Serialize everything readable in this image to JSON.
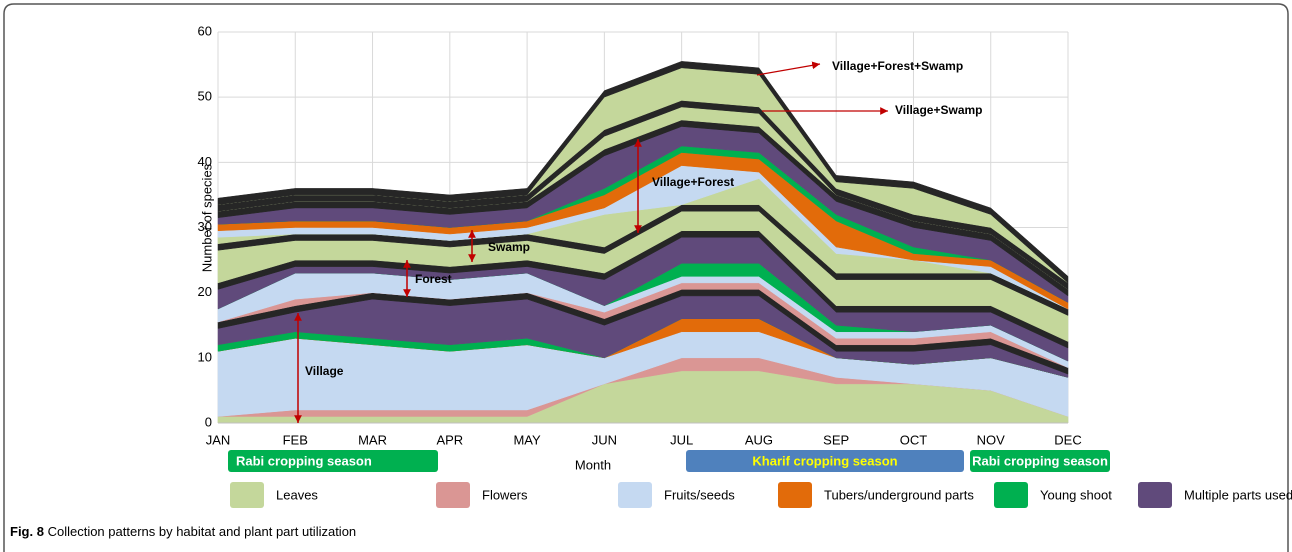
{
  "chart_data": {
    "type": "stacked-area",
    "x_label": "Month",
    "y_label": "Number of species",
    "categories": [
      "JAN",
      "FEB",
      "MAR",
      "APR",
      "MAY",
      "JUN",
      "JUL",
      "AUG",
      "SEP",
      "OCT",
      "NOV",
      "DEC"
    ],
    "ylim": [
      0,
      60
    ],
    "yticks": [
      0,
      10,
      20,
      30,
      40,
      50,
      60
    ],
    "grid": true,
    "series": [
      {
        "name": "Leaves",
        "color": "#c4d79b",
        "values": [
          1,
          1,
          1,
          1,
          1,
          6,
          8,
          8,
          6,
          6,
          5,
          1
        ]
      },
      {
        "name": "Flowers",
        "color": "#da9694",
        "values": [
          0,
          1,
          1,
          1,
          1,
          0,
          2,
          2,
          1,
          0,
          0,
          0
        ]
      },
      {
        "name": "Fruits/seeds",
        "color": "#c5d9f1",
        "values": [
          10,
          11,
          10,
          9,
          10,
          4,
          4,
          4,
          3,
          3,
          5,
          6
        ]
      },
      {
        "name": "Tubers/underground parts",
        "color": "#e26b0a",
        "values": [
          0,
          0,
          0,
          0,
          0,
          0,
          2,
          2,
          0,
          0,
          0,
          0
        ]
      },
      {
        "name": "Young shoot",
        "color": "#00b050",
        "values": [
          1,
          1,
          1,
          1,
          1,
          0,
          0,
          0,
          0,
          0,
          0,
          0
        ]
      },
      {
        "name": "Multiple parts used",
        "color": "#604a7b",
        "values": [
          2.5,
          3,
          6,
          6,
          6,
          5,
          3.5,
          3.5,
          1,
          2,
          2,
          0.5
        ]
      },
      {
        "color": "#262626",
        "values": [
          1,
          1,
          1,
          1,
          1,
          1,
          1,
          1,
          1,
          1,
          1,
          1
        ]
      },
      {
        "name": "Flowers",
        "color": "#da9694",
        "values": [
          0,
          1,
          0,
          0,
          0,
          1,
          1,
          1,
          1,
          1,
          1,
          0
        ]
      },
      {
        "name": "Fruits/seeds",
        "color": "#c5d9f1",
        "values": [
          2,
          4,
          3,
          3,
          3,
          1,
          1,
          1,
          1,
          1,
          1,
          1
        ]
      },
      {
        "name": "Young shoot",
        "color": "#00b050",
        "values": [
          0,
          0,
          0,
          0,
          0,
          0,
          2,
          2,
          1,
          0,
          0,
          0
        ]
      },
      {
        "name": "Multiple parts used",
        "color": "#604a7b",
        "values": [
          3,
          1,
          1,
          1,
          1,
          4,
          4,
          4,
          2,
          3,
          2,
          2
        ]
      },
      {
        "color": "#262626",
        "values": [
          1,
          1,
          1,
          1,
          1,
          1,
          1,
          1,
          1,
          1,
          1,
          1
        ]
      },
      {
        "name": "Leaves",
        "color": "#c4d79b",
        "values": [
          5,
          3,
          3,
          3,
          3,
          3,
          3,
          3,
          4,
          4,
          4,
          4
        ]
      },
      {
        "color": "#262626",
        "values": [
          1,
          1,
          1,
          1,
          1,
          1,
          1,
          1,
          1,
          1,
          1,
          1
        ]
      },
      {
        "name": "Leaves",
        "color": "#c4d79b",
        "values": [
          1,
          0,
          0,
          0,
          0,
          5,
          0,
          4,
          3,
          2,
          0,
          0
        ]
      },
      {
        "name": "Fruits/seeds",
        "color": "#c5d9f1",
        "values": [
          1,
          1,
          1,
          1,
          1,
          1,
          6,
          1,
          1,
          0,
          1,
          0
        ]
      },
      {
        "name": "Tubers/underground parts",
        "color": "#e26b0a",
        "values": [
          1,
          1,
          1,
          1,
          1,
          2,
          2,
          2,
          4,
          1,
          1,
          1
        ]
      },
      {
        "name": "Young shoot",
        "color": "#00b050",
        "values": [
          0,
          0,
          0,
          0,
          0,
          1,
          1,
          1,
          1,
          1,
          0,
          0
        ]
      },
      {
        "name": "Multiple parts used",
        "color": "#604a7b",
        "values": [
          1,
          2,
          2,
          2,
          2,
          5,
          3,
          3,
          2,
          3,
          3,
          1
        ]
      },
      {
        "color": "#262626",
        "values": [
          1,
          1,
          1,
          1,
          1,
          1,
          1,
          1,
          1,
          1,
          1,
          1
        ]
      },
      {
        "name": "Leaves",
        "color": "#c4d79b",
        "values": [
          0,
          0,
          0,
          0,
          0,
          2,
          2,
          2,
          0,
          0,
          0,
          0
        ]
      },
      {
        "color": "#262626",
        "values": [
          1,
          1,
          1,
          1,
          1,
          1,
          1,
          1,
          1,
          1,
          1,
          1
        ]
      },
      {
        "name": "Leaves",
        "color": "#c4d79b",
        "values": [
          0,
          0,
          0,
          0,
          0,
          5,
          5,
          5,
          1,
          4,
          2,
          0
        ]
      },
      {
        "color": "#262626",
        "values": [
          1,
          1,
          1,
          1,
          1,
          1,
          1,
          1,
          1,
          1,
          1,
          1
        ]
      }
    ],
    "annotations": [
      "Village",
      "Forest",
      "Swamp",
      "Village+Forest",
      "Village+Swamp",
      "Village+Forest+Swamp"
    ],
    "seasons": [
      {
        "label": "Rabi cropping season",
        "color": "#00b050",
        "text_color": "#ffffff"
      },
      {
        "label": "Kharif cropping season",
        "color": "#4f81bd",
        "text_color": "#ffff00"
      },
      {
        "label": "Rabi cropping season",
        "color": "#00b050",
        "text_color": "#ffffff"
      }
    ],
    "caption": {
      "label": "Fig. 8",
      "text": "Collection patterns by habitat and plant part utilization"
    }
  }
}
